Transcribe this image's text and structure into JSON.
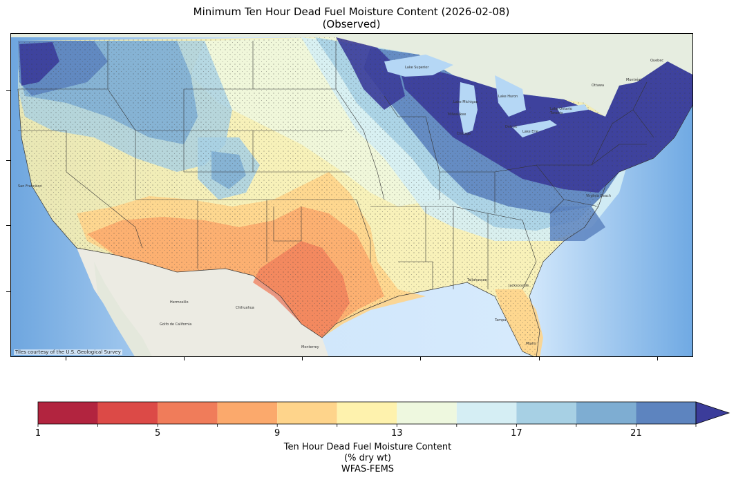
{
  "title": {
    "line1": "Minimum Ten Hour Dead Fuel Moisture Content (2026-02-08)",
    "line2": "(Observed)"
  },
  "map": {
    "attribution": "Tiles courtesy of the U.S. Geological Survey",
    "cities": [
      "San Francisco",
      "Hermosillo",
      "Chihuahua",
      "Golfo de California",
      "Monterrey",
      "Jacksonville",
      "Tallahassee",
      "Tampa",
      "Miami",
      "Ottawa",
      "Montréal",
      "Quebec",
      "Toronto",
      "Detroit",
      "Chicago",
      "Milwaukee",
      "Virginia Beach"
    ],
    "water_labels": [
      "Lake Superior",
      "Lake Huron",
      "Lake Michigan",
      "Lake Ontario",
      "Lake Erie"
    ],
    "colors": {
      "ocean": "#cfe6fb",
      "deep_ocean": "#74aee6",
      "land": "#e9ecdf",
      "mexico_land": "#ecebe3",
      "canada_land": "#e6ede0",
      "state_lines": "#333333"
    }
  },
  "colorbar": {
    "label_lines": [
      "Ten Hour Dead Fuel Moisture Content",
      "(% dry wt)",
      "WFAS-FEMS"
    ],
    "tick_labels": [
      "1",
      "5",
      "9",
      "13",
      "17",
      "21"
    ],
    "tick_values": [
      1,
      5,
      9,
      13,
      17,
      21
    ],
    "boundaries": [
      1,
      3,
      5,
      7,
      9,
      11,
      13,
      15,
      17,
      19,
      21,
      23
    ],
    "colors": [
      "#b2243f",
      "#dc4a47",
      "#f07c5a",
      "#fba96c",
      "#fed48b",
      "#fef2ad",
      "#eef8df",
      "#d5eef4",
      "#a7d0e4",
      "#7eadd2",
      "#5d84bf",
      "#3b3c9a"
    ],
    "extend": "max"
  }
}
